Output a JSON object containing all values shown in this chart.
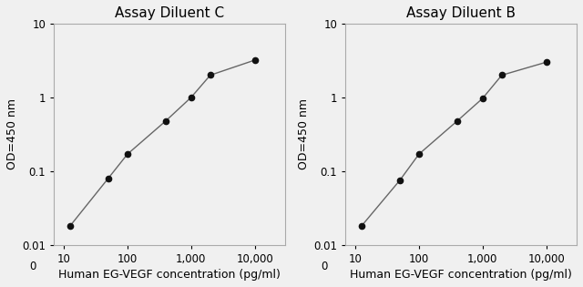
{
  "left_title": "Assay Diluent C",
  "right_title": "Assay Diluent B",
  "xlabel": "Human EG-VEGF concentration (pg/ml)",
  "ylabel": "OD=450 nm",
  "left_x": [
    12.5,
    50,
    100,
    400,
    1000,
    2000,
    10000
  ],
  "left_y": [
    0.018,
    0.08,
    0.17,
    0.48,
    1.0,
    2.0,
    3.2
  ],
  "right_x": [
    12.5,
    50,
    100,
    400,
    1000,
    2000,
    10000
  ],
  "right_y": [
    0.018,
    0.075,
    0.17,
    0.48,
    0.97,
    2.0,
    3.0
  ],
  "xlim": [
    7,
    30000
  ],
  "ylim": [
    0.01,
    10
  ],
  "xticks": [
    10,
    100,
    1000,
    10000
  ],
  "xtick_labels": [
    "10",
    "100",
    "1,000",
    "10,000"
  ],
  "yticks": [
    0.01,
    0.1,
    1,
    10
  ],
  "ytick_labels": [
    "0.01",
    "0.1",
    "1",
    "10"
  ],
  "line_color": "#666666",
  "marker_color": "#111111",
  "background_color": "#f0f0f0",
  "title_fontsize": 11,
  "label_fontsize": 9,
  "tick_fontsize": 8.5
}
